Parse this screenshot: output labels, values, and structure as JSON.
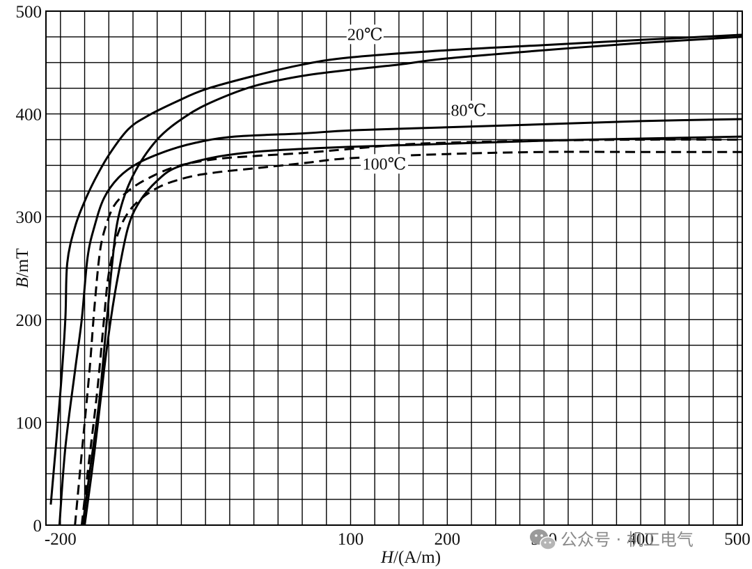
{
  "chart_data": {
    "type": "line",
    "xlabel_var": "H",
    "xlabel_unit": "/(A/m)",
    "ylabel_var": "B",
    "ylabel_unit": "/mT",
    "xlim": [
      -215,
      505
    ],
    "ylim": [
      0,
      500
    ],
    "xticks": [
      {
        "value": -200,
        "label": "-200"
      },
      {
        "value": -100,
        "label": ""
      },
      {
        "value": 100,
        "label": "100"
      },
      {
        "value": 200,
        "label": "200"
      },
      {
        "value": 300,
        "label": "300"
      },
      {
        "value": 400,
        "label": "400"
      },
      {
        "value": 500,
        "label": "500"
      }
    ],
    "yticks": [
      {
        "value": 0,
        "label": "0"
      },
      {
        "value": 100,
        "label": "100"
      },
      {
        "value": 200,
        "label": "200"
      },
      {
        "value": 300,
        "label": "300"
      },
      {
        "value": 400,
        "label": "400"
      },
      {
        "value": 500,
        "label": "500"
      }
    ],
    "grid_x_step": 25,
    "grid_y_step": 25,
    "grid": true,
    "legend": "none",
    "series": [
      {
        "name": "20℃",
        "branch": "upper",
        "style": "solid",
        "points": [
          [
            -210,
            20
          ],
          [
            -200,
            130
          ],
          [
            -195,
            200
          ],
          [
            -193,
            255
          ],
          [
            -185,
            290
          ],
          [
            -175,
            315
          ],
          [
            -165,
            335
          ],
          [
            -150,
            360
          ],
          [
            -130,
            385
          ],
          [
            -110,
            398
          ],
          [
            -80,
            412
          ],
          [
            -50,
            424
          ],
          [
            0,
            437
          ],
          [
            50,
            448
          ],
          [
            100,
            455
          ],
          [
            200,
            462
          ],
          [
            300,
            467
          ],
          [
            400,
            472
          ],
          [
            505,
            477
          ]
        ]
      },
      {
        "name": "20℃",
        "branch": "lower",
        "style": "solid",
        "points": [
          [
            -177,
            0
          ],
          [
            -170,
            50
          ],
          [
            -160,
            120
          ],
          [
            -152,
            200
          ],
          [
            -147,
            250
          ],
          [
            -140,
            300
          ],
          [
            -125,
            340
          ],
          [
            -100,
            375
          ],
          [
            -70,
            398
          ],
          [
            -40,
            413
          ],
          [
            0,
            427
          ],
          [
            50,
            437
          ],
          [
            100,
            443
          ],
          [
            150,
            448
          ],
          [
            200,
            454
          ],
          [
            300,
            462
          ],
          [
            400,
            469
          ],
          [
            505,
            475
          ]
        ]
      },
      {
        "name": "80℃",
        "branch": "upper",
        "style": "solid",
        "points": [
          [
            -201,
            0
          ],
          [
            -195,
            75
          ],
          [
            -185,
            150
          ],
          [
            -178,
            200
          ],
          [
            -172,
            260
          ],
          [
            -165,
            290
          ],
          [
            -155,
            318
          ],
          [
            -140,
            338
          ],
          [
            -120,
            352
          ],
          [
            -90,
            364
          ],
          [
            -60,
            372
          ],
          [
            -20,
            378
          ],
          [
            50,
            381
          ],
          [
            100,
            384
          ],
          [
            200,
            387
          ],
          [
            300,
            390
          ],
          [
            400,
            393
          ],
          [
            505,
            395
          ]
        ]
      },
      {
        "name": "80℃",
        "branch": "lower",
        "style": "solid",
        "points": [
          [
            -175,
            0
          ],
          [
            -165,
            70
          ],
          [
            -155,
            150
          ],
          [
            -148,
            200
          ],
          [
            -140,
            245
          ],
          [
            -130,
            290
          ],
          [
            -118,
            315
          ],
          [
            -100,
            335
          ],
          [
            -80,
            348
          ],
          [
            -40,
            358
          ],
          [
            0,
            363
          ],
          [
            50,
            366
          ],
          [
            100,
            368
          ],
          [
            200,
            371
          ],
          [
            300,
            374
          ],
          [
            400,
            376
          ],
          [
            505,
            378
          ]
        ]
      },
      {
        "name": "100℃",
        "branch": "upper",
        "style": "dashed",
        "points": [
          [
            -185,
            0
          ],
          [
            -178,
            70
          ],
          [
            -170,
            150
          ],
          [
            -165,
            210
          ],
          [
            -160,
            260
          ],
          [
            -155,
            285
          ],
          [
            -145,
            310
          ],
          [
            -130,
            325
          ],
          [
            -110,
            337
          ],
          [
            -80,
            349
          ],
          [
            -40,
            356
          ],
          [
            0,
            359
          ],
          [
            50,
            362
          ],
          [
            100,
            366
          ],
          [
            150,
            370
          ],
          [
            200,
            372
          ],
          [
            300,
            374
          ],
          [
            400,
            375
          ],
          [
            505,
            375
          ]
        ]
      },
      {
        "name": "100℃",
        "branch": "lower",
        "style": "dashed",
        "points": [
          [
            -178,
            0
          ],
          [
            -172,
            50
          ],
          [
            -162,
            130
          ],
          [
            -155,
            200
          ],
          [
            -150,
            245
          ],
          [
            -140,
            285
          ],
          [
            -125,
            310
          ],
          [
            -100,
            328
          ],
          [
            -70,
            338
          ],
          [
            -40,
            343
          ],
          [
            0,
            347
          ],
          [
            50,
            352
          ],
          [
            100,
            357
          ],
          [
            200,
            361
          ],
          [
            300,
            363
          ],
          [
            400,
            363
          ],
          [
            505,
            363
          ]
        ]
      }
    ],
    "annotations": [
      {
        "text": "20℃",
        "x": 115,
        "y": 472
      },
      {
        "text": "80℃",
        "x": 222,
        "y": 398
      },
      {
        "text": "100℃",
        "x": 135,
        "y": 346
      }
    ]
  },
  "watermark": {
    "icon": "wechat-icon",
    "text": "公众号 · 机工电气"
  }
}
